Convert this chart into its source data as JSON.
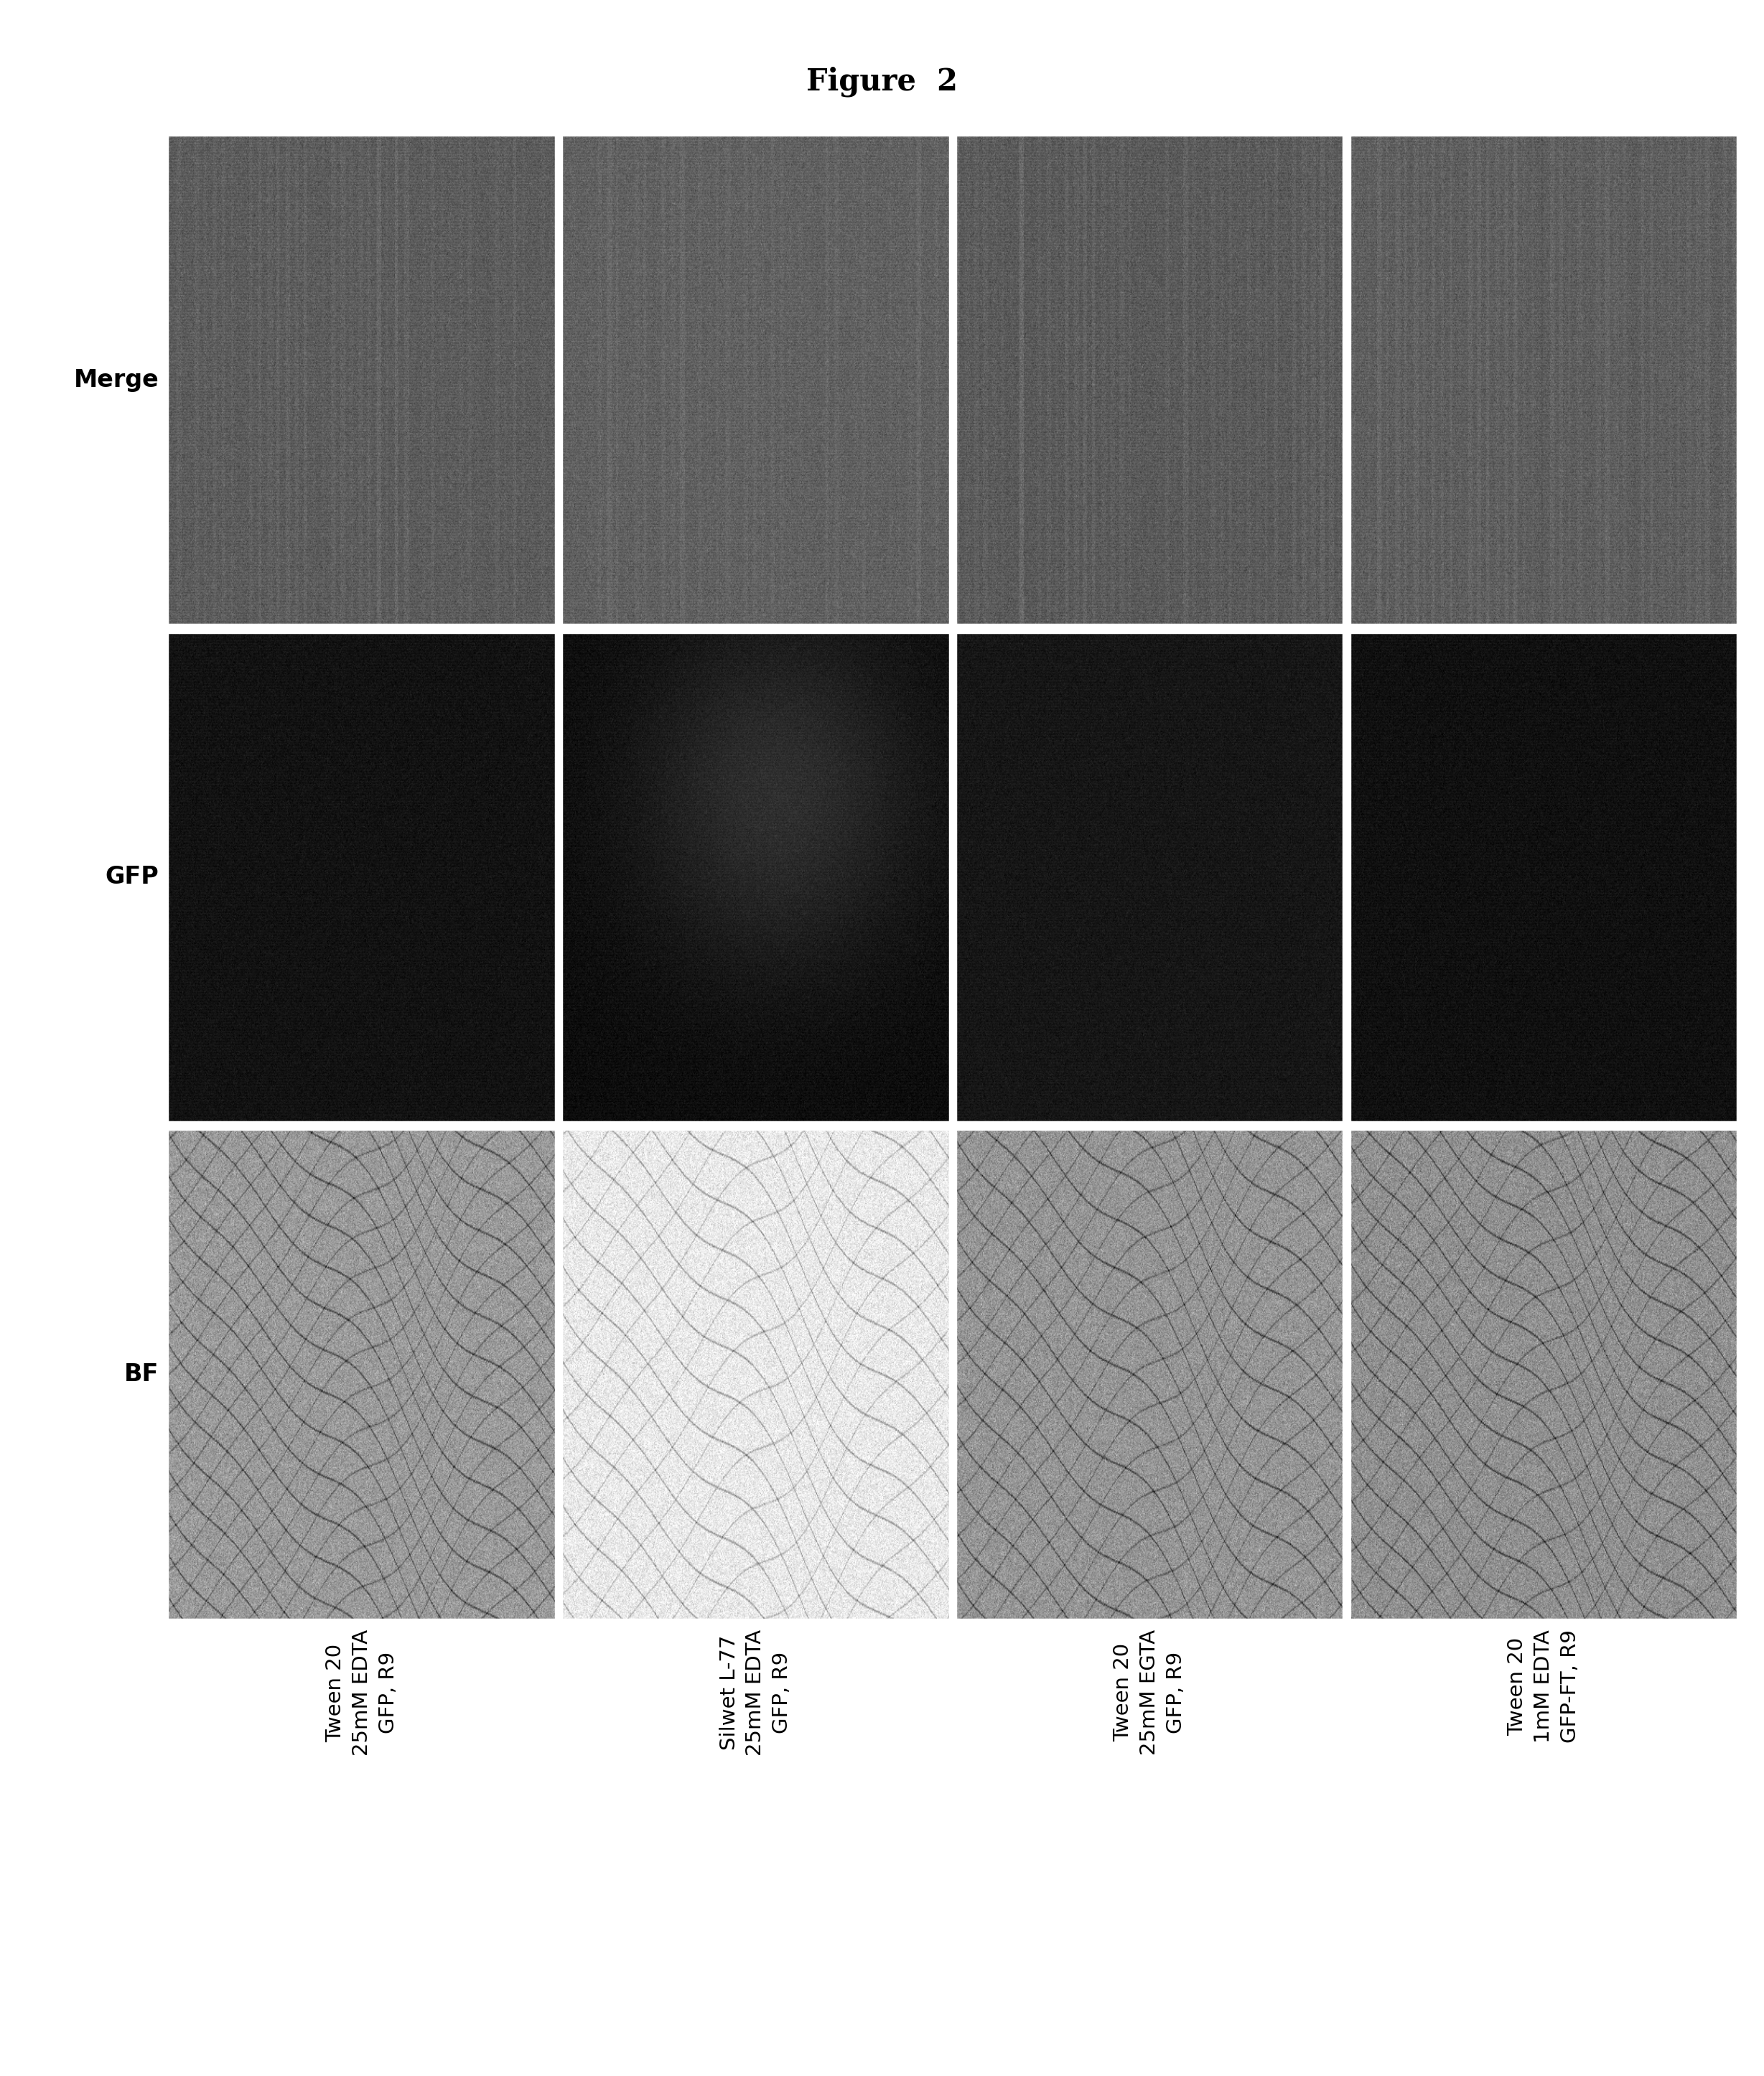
{
  "title": "Figure  2",
  "title_fontsize": 30,
  "row_labels": [
    "Merge",
    "GFP",
    "BF"
  ],
  "col_labels": [
    "Tween 20\n25mM EDTA\nGFP, R9",
    "Silwet L-77\n25mM EDTA\nGFP, R9",
    "Tween 20\n25mM EGTA\nGFP, R9",
    "Tween 20\n1mM EDTA\nGFP-FT, R9"
  ],
  "background_color": "#ffffff",
  "label_fontsize": 24,
  "col_label_fontsize": 21,
  "merge_base_gray": [
    90,
    95,
    88,
    92
  ],
  "merge_noise_amp": 25,
  "gfp_base_gray": [
    18,
    12,
    22,
    16
  ],
  "gfp_noise_amp": 12,
  "bf_base_gray": [
    155,
    200,
    150,
    145
  ],
  "bf_noise_amp": 30
}
